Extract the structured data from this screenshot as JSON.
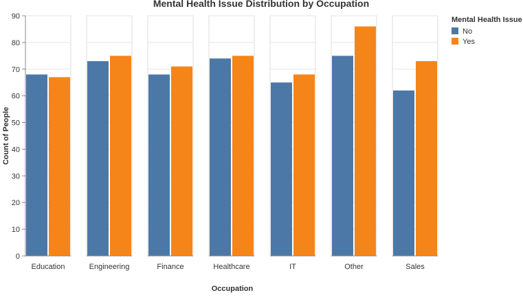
{
  "chart_data": {
    "type": "bar",
    "title": "Mental Health Issue Distribution by Occupation",
    "xlabel": "Occupation",
    "ylabel": "Count of People",
    "ylim": [
      0,
      90
    ],
    "yticks": [
      0,
      10,
      20,
      30,
      40,
      50,
      60,
      70,
      80,
      90
    ],
    "categories": [
      "Education",
      "Engineering",
      "Finance",
      "Healthcare",
      "IT",
      "Other",
      "Sales"
    ],
    "series": [
      {
        "name": "No",
        "color": "#4c78a8",
        "values": [
          68,
          73,
          68,
          74,
          65,
          75,
          62
        ]
      },
      {
        "name": "Yes",
        "color": "#f58518",
        "values": [
          67,
          75,
          71,
          75,
          68,
          86,
          73
        ]
      }
    ],
    "legend": {
      "title": "Mental Health Issue",
      "position": "top-right"
    },
    "grid": true
  }
}
